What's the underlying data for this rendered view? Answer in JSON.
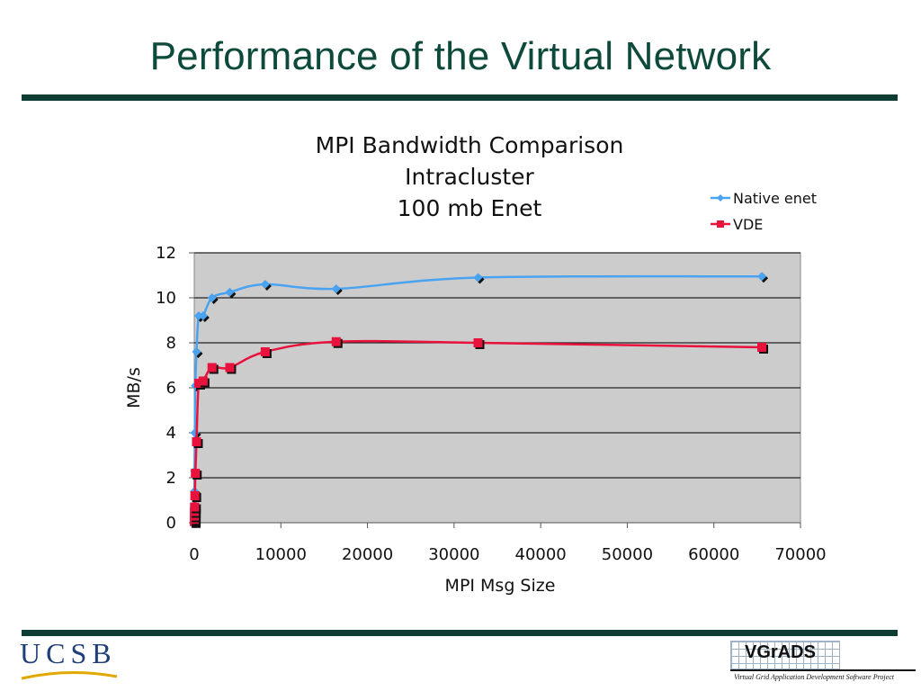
{
  "slide": {
    "title": "Performance of the Virtual Network",
    "footer_left_logo": "UCSB",
    "footer_right_logo": "VGrADS",
    "footer_right_tagline": "Virtual Grid Application Development Software Project"
  },
  "colors": {
    "title": "#0d4a3c",
    "rule": "#0d3d33",
    "plot_background": "#cccccc",
    "native": "#4aa3f0",
    "vde": "#e8123c"
  },
  "chart_data": {
    "type": "line",
    "title_lines": [
      "MPI Bandwidth Comparison",
      "Intracluster",
      "100 mb Enet"
    ],
    "xlabel": "MPI Msg Size",
    "ylabel": "MB/s",
    "xlim": [
      0,
      70000
    ],
    "ylim": [
      0,
      12
    ],
    "xticks": [
      0,
      10000,
      20000,
      30000,
      40000,
      50000,
      60000,
      70000
    ],
    "yticks": [
      0,
      2,
      4,
      6,
      8,
      10,
      12
    ],
    "grid": "horizontal",
    "legend_position": "top-right",
    "series": [
      {
        "name": "Native enet",
        "color": "#4aa3f0",
        "marker": "diamond",
        "x": [
          1,
          2,
          4,
          8,
          16,
          32,
          64,
          128,
          256,
          512,
          1024,
          2048,
          4096,
          8192,
          16384,
          32768,
          65536
        ],
        "y": [
          0.1,
          0.2,
          0.4,
          0.8,
          1.4,
          2.3,
          4.0,
          6.1,
          7.6,
          9.2,
          9.2,
          10.0,
          10.25,
          10.6,
          10.4,
          10.9,
          10.95
        ]
      },
      {
        "name": "VDE",
        "color": "#e8123c",
        "marker": "square",
        "x": [
          1,
          2,
          4,
          8,
          16,
          32,
          64,
          128,
          256,
          512,
          1024,
          2048,
          4096,
          8192,
          16384,
          32768,
          65536
        ],
        "y": [
          0.05,
          0.1,
          0.15,
          0.3,
          0.5,
          0.7,
          1.2,
          2.2,
          3.6,
          6.2,
          6.3,
          6.9,
          6.9,
          7.6,
          8.05,
          8.0,
          7.8
        ]
      }
    ]
  }
}
